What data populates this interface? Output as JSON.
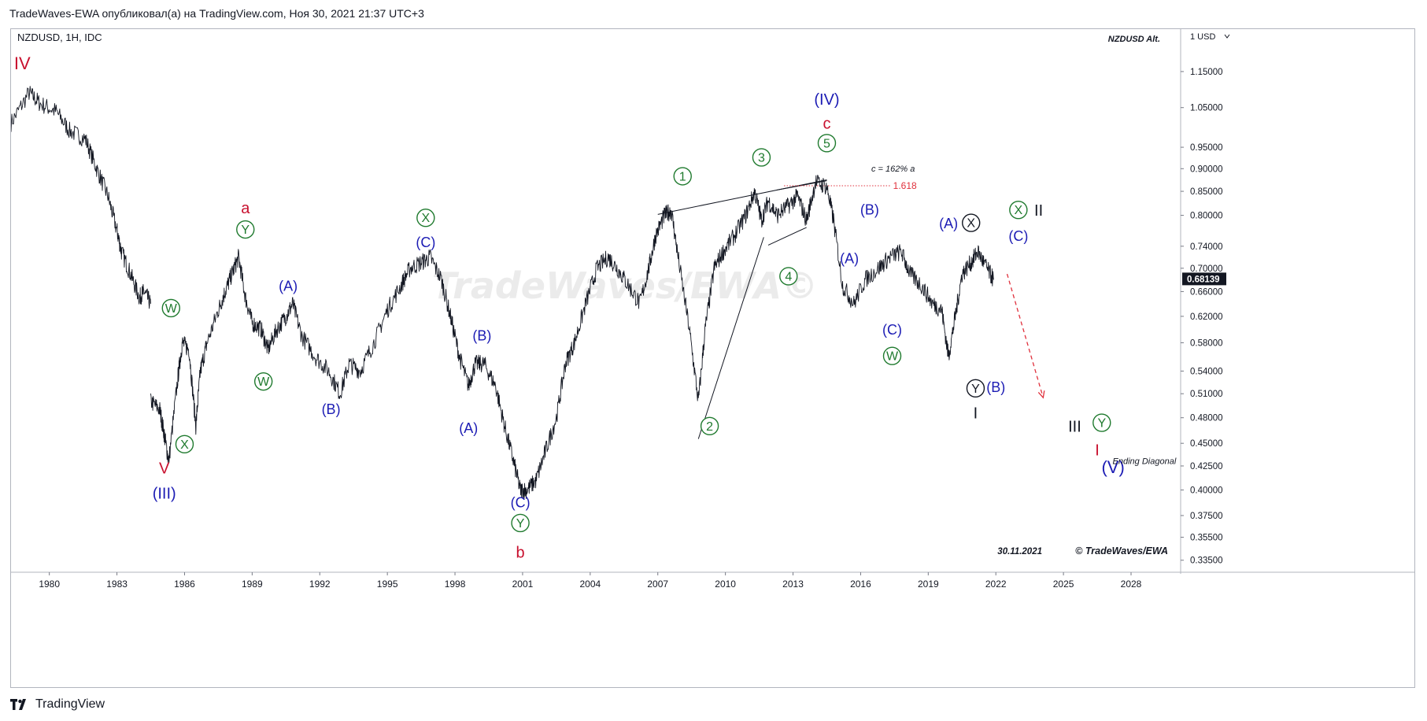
{
  "header": {
    "text": "TradeWaves-EWA опубликовал(а) на TradingView.com, Ноя 30, 2021 21:37 UTC+3"
  },
  "footer": {
    "brand": "TradingView"
  },
  "colors": {
    "red": "#c8102e",
    "blue": "#1c1cb4",
    "green": "#1f7a2e",
    "black": "#131722",
    "price_tag_bg": "#131722",
    "price_tag_fg": "#ffffff",
    "fib": "#e0303c",
    "watermark": "#ebebeb"
  },
  "chart_data": {
    "type": "line",
    "symbol_label": "NZDUSD, 1H, IDC",
    "alt_label": "NZDUSD Alt.",
    "currency_label": "1 USD",
    "watermark": "TradeWaves/EWA©",
    "copyright": "© TradeWaves/EWA",
    "date_label": "30.11.2021",
    "last_price_label": "0.68139",
    "y_scale": "log",
    "ylim": [
      0.325,
      1.28
    ],
    "xlim": [
      1978.3,
      2030.2
    ],
    "x_ticks": [
      "1980",
      "1983",
      "1986",
      "1989",
      "1992",
      "1995",
      "1998",
      "2001",
      "2004",
      "2007",
      "2010",
      "2013",
      "2016",
      "2019",
      "2022",
      "2025",
      "2028"
    ],
    "y_ticks": [
      "1.15000",
      "1.05000",
      "0.95000",
      "0.90000",
      "0.85000",
      "0.80000",
      "0.74000",
      "0.70000",
      "0.66000",
      "0.62000",
      "0.58000",
      "0.54000",
      "0.51000",
      "0.48000",
      "0.45000",
      "0.42500",
      "0.40000",
      "0.37500",
      "0.35500",
      "0.33500"
    ],
    "series": [
      {
        "segment": 1,
        "x": [
          1978.3,
          1979.1,
          1979.6,
          1980.3,
          1980.9,
          1981.6,
          1982.1,
          1982.6,
          1983.0,
          1983.2,
          1983.6,
          1984.0,
          1984.2,
          1984.5
        ],
        "y": [
          1.01,
          1.09,
          1.06,
          1.04,
          0.99,
          0.97,
          0.9,
          0.84,
          0.77,
          0.73,
          0.69,
          0.65,
          0.66,
          0.64
        ]
      },
      {
        "segment": 2,
        "x": [
          1984.5,
          1984.9,
          1985.1,
          1985.3,
          1985.7,
          1985.9,
          1986.2,
          1986.5,
          1986.7,
          1987.0,
          1987.5,
          1987.8,
          1988.1,
          1988.4,
          1988.7,
          1989.0,
          1989.4,
          1989.7,
          1990.1,
          1990.5,
          1990.8,
          1991.2,
          1991.8,
          1992.4,
          1992.9,
          1993.3,
          1993.8,
          1994.4,
          1995.0,
          1995.6,
          1996.0,
          1996.5,
          1996.9,
          1997.4,
          1997.8,
          1998.2,
          1998.6,
          1998.9,
          1999.3,
          1999.8,
          2000.2,
          2000.6,
          2000.9,
          2001.2,
          2001.6,
          2002.0,
          2002.5,
          2002.9,
          2003.3,
          2003.8,
          2004.3,
          2004.8,
          2005.2,
          2005.7,
          2006.2,
          2006.6,
          2006.9,
          2007.3,
          2007.6,
          2007.9,
          2008.4,
          2008.8,
          2009.1,
          2009.5,
          2009.9,
          2010.4,
          2010.9,
          2011.3,
          2011.6,
          2011.9,
          2012.3,
          2012.8,
          2013.2,
          2013.6,
          2014.0,
          2014.5,
          2014.8,
          2015.2,
          2015.7,
          2016.2,
          2016.8,
          2017.3,
          2017.8,
          2018.2,
          2018.7,
          2019.2,
          2019.6,
          2019.9,
          2020.2,
          2020.5,
          2020.9,
          2021.2,
          2021.6,
          2021.9
        ],
        "y": [
          0.5,
          0.49,
          0.46,
          0.43,
          0.53,
          0.58,
          0.57,
          0.47,
          0.54,
          0.58,
          0.63,
          0.66,
          0.69,
          0.72,
          0.65,
          0.61,
          0.6,
          0.57,
          0.6,
          0.62,
          0.64,
          0.59,
          0.56,
          0.54,
          0.51,
          0.55,
          0.54,
          0.58,
          0.63,
          0.67,
          0.7,
          0.71,
          0.72,
          0.68,
          0.62,
          0.56,
          0.52,
          0.55,
          0.55,
          0.52,
          0.47,
          0.43,
          0.4,
          0.4,
          0.41,
          0.44,
          0.48,
          0.55,
          0.58,
          0.64,
          0.7,
          0.72,
          0.7,
          0.67,
          0.64,
          0.7,
          0.76,
          0.8,
          0.81,
          0.72,
          0.6,
          0.5,
          0.6,
          0.7,
          0.73,
          0.76,
          0.8,
          0.85,
          0.79,
          0.83,
          0.8,
          0.82,
          0.84,
          0.79,
          0.87,
          0.86,
          0.79,
          0.67,
          0.64,
          0.68,
          0.7,
          0.72,
          0.73,
          0.69,
          0.67,
          0.64,
          0.63,
          0.56,
          0.62,
          0.69,
          0.71,
          0.73,
          0.7,
          0.68
        ]
      }
    ],
    "projection": {
      "x": [
        2022.5,
        2024.1
      ],
      "y": [
        0.69,
        0.505
      ]
    },
    "trendlines": [
      {
        "x": [
          2007.0,
          2014.5
        ],
        "y": [
          0.802,
          0.875
        ]
      },
      {
        "x": [
          2008.8,
          2011.7
        ],
        "y": [
          0.455,
          0.757
        ]
      },
      {
        "x": [
          2011.9,
          2013.6
        ],
        "y": [
          0.742,
          0.776
        ]
      },
      {
        "x": [
          2012.3,
          2014.5
        ],
        "y": [
          0.853,
          0.873
        ]
      }
    ],
    "fib_level": {
      "label": "1.618",
      "note": "c = 162% a",
      "x": [
        2012.6,
        2017.3
      ],
      "y": 0.862
    },
    "annotations": [
      {
        "text": "IV",
        "x": 1978.8,
        "y": 1.175,
        "color": "red",
        "size": 22
      },
      {
        "text": "V",
        "x": 1985.1,
        "y": 0.423,
        "color": "red",
        "size": 20
      },
      {
        "text": "(III)",
        "x": 1985.1,
        "y": 0.397,
        "color": "blue",
        "size": 20
      },
      {
        "text": "a",
        "x": 1988.7,
        "y": 0.816,
        "color": "red",
        "size": 20
      },
      {
        "text": "Y",
        "x": 1988.7,
        "y": 0.772,
        "color": "green",
        "size": 16,
        "circle": true
      },
      {
        "text": "W",
        "x": 1985.4,
        "y": 0.633,
        "color": "green",
        "size": 16,
        "circle": true
      },
      {
        "text": "X",
        "x": 1986.0,
        "y": 0.449,
        "color": "green",
        "size": 16,
        "circle": true
      },
      {
        "text": "W",
        "x": 1989.5,
        "y": 0.526,
        "color": "green",
        "size": 16,
        "circle": true
      },
      {
        "text": "(A)",
        "x": 1990.6,
        "y": 0.67,
        "color": "blue",
        "size": 18
      },
      {
        "text": "(B)",
        "x": 1992.5,
        "y": 0.491,
        "color": "blue",
        "size": 18
      },
      {
        "text": "X",
        "x": 1996.7,
        "y": 0.795,
        "color": "green",
        "size": 16,
        "circle": true
      },
      {
        "text": "(C)",
        "x": 1996.7,
        "y": 0.748,
        "color": "blue",
        "size": 18
      },
      {
        "text": "(B)",
        "x": 1999.2,
        "y": 0.591,
        "color": "blue",
        "size": 18
      },
      {
        "text": "(A)",
        "x": 1998.6,
        "y": 0.468,
        "color": "blue",
        "size": 18
      },
      {
        "text": "(C)",
        "x": 2000.9,
        "y": 0.388,
        "color": "blue",
        "size": 18
      },
      {
        "text": "Y",
        "x": 2000.9,
        "y": 0.368,
        "color": "green",
        "size": 16,
        "circle": true
      },
      {
        "text": "b",
        "x": 2000.9,
        "y": 0.342,
        "color": "red",
        "size": 20
      },
      {
        "text": "1",
        "x": 2008.1,
        "y": 0.883,
        "color": "green",
        "size": 16,
        "circle": true
      },
      {
        "text": "2",
        "x": 2009.3,
        "y": 0.47,
        "color": "green",
        "size": 16,
        "circle": true
      },
      {
        "text": "3",
        "x": 2011.6,
        "y": 0.926,
        "color": "green",
        "size": 16,
        "circle": true
      },
      {
        "text": "4",
        "x": 2012.8,
        "y": 0.686,
        "color": "green",
        "size": 16,
        "circle": true
      },
      {
        "text": "5",
        "x": 2014.5,
        "y": 0.96,
        "color": "green",
        "size": 16,
        "circle": true
      },
      {
        "text": "c",
        "x": 2014.5,
        "y": 1.01,
        "color": "red",
        "size": 20
      },
      {
        "text": "(IV)",
        "x": 2014.5,
        "y": 1.073,
        "color": "blue",
        "size": 20
      },
      {
        "text": "(B)",
        "x": 2016.4,
        "y": 0.812,
        "color": "blue",
        "size": 18
      },
      {
        "text": "(A)",
        "x": 2015.5,
        "y": 0.718,
        "color": "blue",
        "size": 18
      },
      {
        "text": "(C)",
        "x": 2017.4,
        "y": 0.6,
        "color": "blue",
        "size": 18
      },
      {
        "text": "W",
        "x": 2017.4,
        "y": 0.561,
        "color": "green",
        "size": 16,
        "circle": true
      },
      {
        "text": "(A)",
        "x": 2019.9,
        "y": 0.784,
        "color": "blue",
        "size": 18
      },
      {
        "text": "X",
        "x": 2020.9,
        "y": 0.785,
        "color": "black",
        "size": 16,
        "circle": true
      },
      {
        "text": "Y",
        "x": 2021.1,
        "y": 0.517,
        "color": "black",
        "size": 16,
        "circle": true
      },
      {
        "text": "(B)",
        "x": 2022.0,
        "y": 0.519,
        "color": "blue",
        "size": 18
      },
      {
        "text": "I",
        "x": 2021.1,
        "y": 0.486,
        "color": "black",
        "size": 20
      },
      {
        "text": "X",
        "x": 2023.0,
        "y": 0.811,
        "color": "green",
        "size": 16,
        "circle": true
      },
      {
        "text": "II",
        "x": 2023.9,
        "y": 0.811,
        "color": "black",
        "size": 20
      },
      {
        "text": "(C)",
        "x": 2023.0,
        "y": 0.76,
        "color": "blue",
        "size": 18
      },
      {
        "text": "III",
        "x": 2025.5,
        "y": 0.47,
        "color": "black",
        "size": 20
      },
      {
        "text": "Y",
        "x": 2026.7,
        "y": 0.474,
        "color": "green",
        "size": 16,
        "circle": true
      },
      {
        "text": "I",
        "x": 2026.5,
        "y": 0.443,
        "color": "red",
        "size": 20
      },
      {
        "text": "(V)",
        "x": 2027.2,
        "y": 0.424,
        "color": "blue",
        "size": 22
      },
      {
        "text": "Ending Diagonal",
        "x": 2030.0,
        "y": 0.427,
        "color": "black",
        "size": 11,
        "italic": true
      }
    ]
  }
}
